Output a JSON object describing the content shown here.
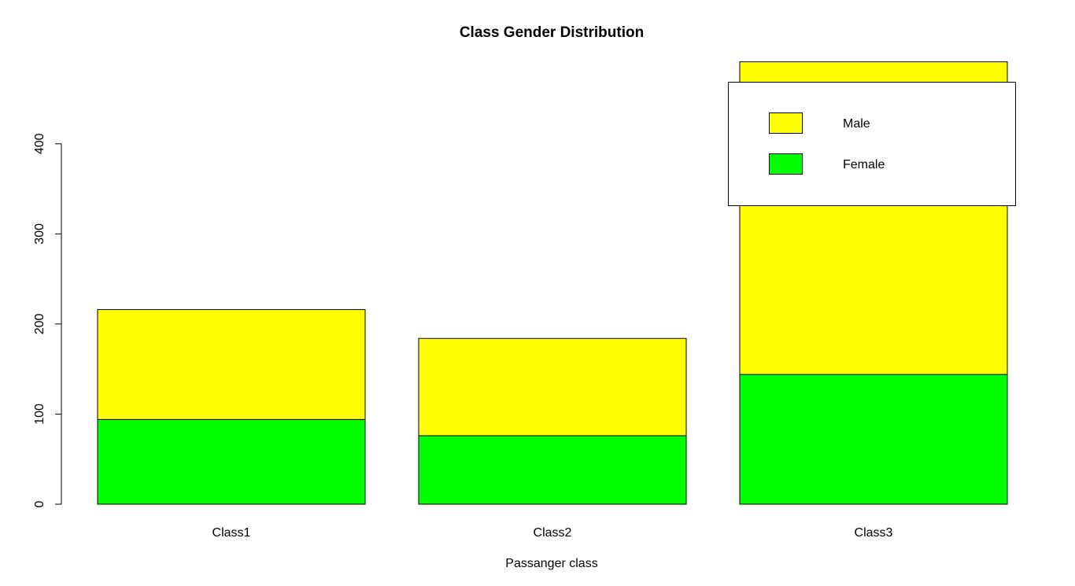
{
  "chart_data": {
    "type": "bar",
    "stacked": true,
    "title": "Class Gender Distribution",
    "xlabel": "Passanger class",
    "ylabel": "",
    "categories": [
      "Class1",
      "Class2",
      "Class3"
    ],
    "series": [
      {
        "name": "Female",
        "values": [
          94,
          76,
          144
        ],
        "color": "#00ff00"
      },
      {
        "name": "Male",
        "values": [
          122,
          108,
          347
        ],
        "color": "#ffff00"
      }
    ],
    "yticks": [
      0,
      100,
      200,
      300,
      400
    ],
    "ylim": [
      0,
      491
    ],
    "grid": false,
    "legend": {
      "position": "top-right",
      "entries": [
        {
          "label": "Male",
          "color": "#ffff00"
        },
        {
          "label": "Female",
          "color": "#00ff00"
        }
      ]
    }
  }
}
